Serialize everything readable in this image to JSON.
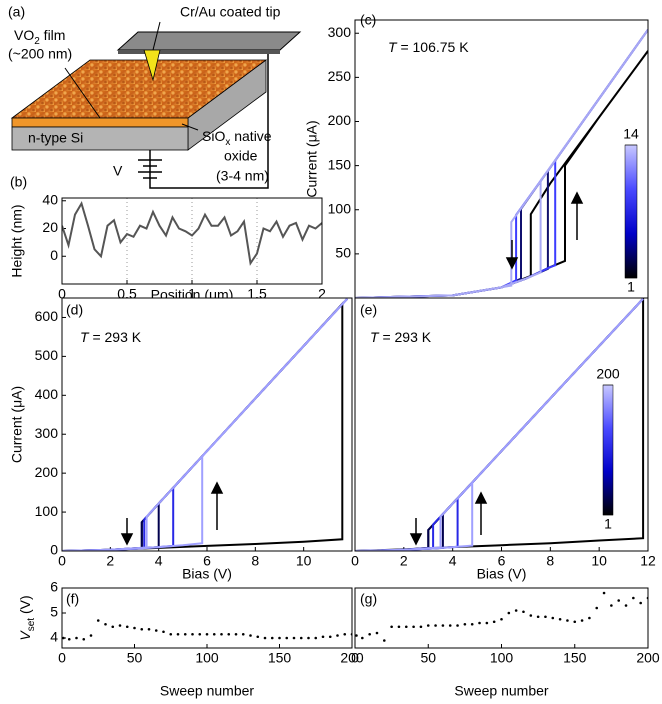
{
  "schematic": {
    "panel": "(a)",
    "tip_label": "Cr/Au coated tip",
    "film_label": [
      "VO",
      "2",
      " film"
    ],
    "film_thickness": "(~200 nm)",
    "substrate_label": "n-type Si",
    "oxide_label": [
      "SiO",
      "x",
      " native"
    ],
    "oxide_line2": "oxide",
    "oxide_thickness": "(3-4 nm)",
    "source_label": "V"
  },
  "chart_data": [
    {
      "type": "line",
      "panel": "(b)",
      "xlabel": "Position (μm)",
      "ylabel": "Height (nm)",
      "xlim": [
        0,
        2
      ],
      "ylim": [
        -20,
        42
      ],
      "xticks": [
        0,
        0.5,
        1,
        1.5,
        2
      ],
      "yticks": [
        0,
        20,
        40
      ],
      "grid": true,
      "series": [
        {
          "color": "#555555",
          "x": [
            0,
            0.05,
            0.1,
            0.15,
            0.2,
            0.25,
            0.3,
            0.35,
            0.4,
            0.45,
            0.5,
            0.55,
            0.6,
            0.65,
            0.7,
            0.75,
            0.8,
            0.85,
            0.9,
            0.95,
            1,
            1.05,
            1.1,
            1.15,
            1.2,
            1.25,
            1.3,
            1.35,
            1.4,
            1.45,
            1.5,
            1.55,
            1.6,
            1.65,
            1.7,
            1.75,
            1.8,
            1.85,
            1.9,
            1.95,
            2
          ],
          "values": [
            22,
            8,
            30,
            38,
            22,
            5,
            0,
            22,
            26,
            10,
            16,
            14,
            22,
            20,
            32,
            22,
            15,
            28,
            20,
            18,
            15,
            20,
            30,
            22,
            22,
            28,
            15,
            18,
            25,
            -5,
            2,
            20,
            18,
            25,
            14,
            22,
            24,
            12,
            22,
            20,
            24
          ]
        }
      ]
    },
    {
      "type": "line",
      "panel": "(c)",
      "ylabel": "Current (μA)",
      "annotation": [
        "T",
        " = 106.75 K"
      ],
      "xlim": [
        0,
        12
      ],
      "ylim": [
        0,
        315
      ],
      "yticks": [
        50,
        100,
        150,
        200,
        250,
        300
      ],
      "colorbar": {
        "ticks": [
          1,
          14
        ],
        "colors": [
          "#000000",
          "#0000c8",
          "#4a4aff",
          "#c8c8ff"
        ]
      },
      "series": [
        {
          "color": "#000000",
          "x": [
            0,
            4,
            6,
            7,
            8,
            8.6,
            8.6,
            10,
            12,
            10,
            8,
            7.2,
            7.2,
            6,
            4,
            0
          ],
          "values": [
            0,
            3,
            12,
            22,
            35,
            42,
            150,
            205,
            280,
            205,
            130,
            95,
            25,
            12,
            3,
            0
          ]
        },
        {
          "color": "#10106e",
          "x": [
            0,
            4,
            6,
            7,
            7.9,
            7.9,
            10,
            12,
            10,
            8,
            6.8,
            6.8,
            6,
            4,
            0
          ],
          "values": [
            0,
            3,
            12,
            22,
            33,
            144,
            226,
            304,
            226,
            148,
            101,
            22,
            12,
            3,
            0
          ]
        },
        {
          "color": "#3c3cff",
          "x": [
            0,
            4,
            6,
            7,
            8,
            8.2,
            8.2,
            10,
            12,
            10,
            8,
            6.6,
            6.6,
            6,
            4,
            0
          ],
          "values": [
            0,
            3,
            12,
            22,
            35,
            37,
            156,
            226,
            304,
            226,
            148,
            94,
            20,
            12,
            3,
            0
          ]
        },
        {
          "color": "#a8a8f5",
          "x": [
            0,
            4,
            6,
            7,
            7.6,
            7.6,
            10,
            12,
            10,
            8,
            6.4,
            6.4,
            4,
            0
          ],
          "values": [
            0,
            3,
            12,
            22,
            29,
            133,
            226,
            304,
            226,
            148,
            86,
            14,
            3,
            0
          ]
        }
      ]
    },
    {
      "type": "line",
      "panel": "(d)",
      "xlabel": "Bias (V)",
      "ylabel": "Current (μA)",
      "annotation": [
        "T",
        " = 293 K"
      ],
      "xlim": [
        0,
        12
      ],
      "ylim": [
        0,
        650
      ],
      "xticks": [
        0,
        2,
        4,
        6,
        8,
        10
      ],
      "yticks": [
        0,
        100,
        200,
        300,
        400,
        500,
        600
      ],
      "series": [
        {
          "color": "#000000",
          "x": [
            0,
            2,
            4,
            6,
            8,
            10,
            11.6,
            11.6,
            10,
            8,
            6,
            4,
            3.3,
            3.3,
            2,
            0
          ],
          "values": [
            0,
            3,
            8,
            13,
            18,
            24,
            30,
            635,
            527,
            392,
            257,
            122,
            74,
            8,
            3,
            0
          ]
        },
        {
          "color": "#00004d",
          "x": [
            0,
            2,
            3,
            4,
            4,
            6,
            8,
            10,
            11.8,
            10,
            8,
            6,
            4,
            3.3,
            3.3,
            2,
            0
          ],
          "values": [
            0,
            3,
            6,
            10,
            122,
            257,
            392,
            527,
            648,
            527,
            392,
            257,
            122,
            74,
            8,
            3,
            0
          ]
        },
        {
          "color": "#2828e6",
          "x": [
            0,
            2,
            3,
            4,
            4.6,
            4.6,
            6,
            8,
            10,
            11.8,
            10,
            8,
            6,
            4,
            3.4,
            3.4,
            2,
            0
          ],
          "values": [
            0,
            3,
            6,
            10,
            13,
            162,
            257,
            392,
            527,
            648,
            527,
            392,
            257,
            122,
            81,
            8,
            3,
            0
          ]
        },
        {
          "color": "#a0a0ff",
          "x": [
            0,
            2,
            3,
            4,
            5,
            5.8,
            5.8,
            8,
            10,
            11.8,
            10,
            8,
            6,
            4,
            3.5,
            3.5,
            2,
            0
          ],
          "values": [
            0,
            3,
            6,
            10,
            15,
            20,
            243,
            392,
            527,
            648,
            527,
            392,
            257,
            122,
            88,
            9,
            3,
            0
          ]
        }
      ]
    },
    {
      "type": "line",
      "panel": "(e)",
      "xlabel": "Bias (V)",
      "annotation": [
        "T",
        " = 293 K"
      ],
      "xlim": [
        0,
        12
      ],
      "ylim": [
        0,
        650
      ],
      "xticks": [
        0,
        2,
        4,
        6,
        8,
        10,
        12
      ],
      "colorbar": {
        "ticks": [
          1,
          200
        ],
        "colors": [
          "#000000",
          "#0000c8",
          "#4a4aff",
          "#c8c8ff"
        ]
      },
      "series": [
        {
          "color": "#000000",
          "x": [
            0,
            2,
            4,
            6,
            8,
            10,
            11.8,
            11.8,
            10,
            8,
            6,
            4,
            3,
            3,
            2,
            0
          ],
          "values": [
            0,
            4,
            10,
            15,
            20,
            27,
            33,
            648,
            527,
            392,
            257,
            122,
            54,
            8,
            3,
            0
          ]
        },
        {
          "color": "#00004d",
          "x": [
            0,
            2,
            3,
            3.6,
            3.6,
            6,
            8,
            10,
            11.8,
            10,
            8,
            6,
            4,
            3,
            3,
            2,
            0
          ],
          "values": [
            0,
            3,
            6,
            8,
            95,
            257,
            392,
            527,
            648,
            527,
            392,
            257,
            122,
            54,
            8,
            3,
            0
          ]
        },
        {
          "color": "#2828e6",
          "x": [
            0,
            2,
            3,
            4,
            4.2,
            4.2,
            6,
            8,
            10,
            11.8,
            10,
            8,
            6,
            4,
            3.2,
            3.2,
            2,
            0
          ],
          "values": [
            0,
            3,
            6,
            10,
            11,
            135,
            257,
            392,
            527,
            648,
            527,
            392,
            257,
            122,
            68,
            8,
            3,
            0
          ]
        },
        {
          "color": "#a0a0ff",
          "x": [
            0,
            2,
            3,
            4,
            4.8,
            4.8,
            6,
            8,
            10,
            11.8,
            10,
            8,
            6,
            4,
            3.5,
            3.5,
            2,
            0
          ],
          "values": [
            0,
            3,
            6,
            10,
            14,
            176,
            257,
            392,
            527,
            648,
            527,
            392,
            257,
            122,
            88,
            9,
            3,
            0
          ]
        }
      ]
    },
    {
      "type": "scatter",
      "panel": "(f)",
      "xlabel": "Sweep number",
      "ylabel": [
        "V",
        "set",
        " (V)"
      ],
      "xlim": [
        0,
        200
      ],
      "ylim": [
        3.6,
        6
      ],
      "xticks": [
        0,
        50,
        100,
        150,
        200
      ],
      "yticks": [
        4,
        5,
        6
      ],
      "series": [
        {
          "color": "#000000",
          "x": [
            1,
            5,
            10,
            15,
            20,
            25,
            30,
            35,
            40,
            45,
            50,
            55,
            60,
            65,
            70,
            75,
            80,
            85,
            90,
            95,
            100,
            105,
            110,
            115,
            120,
            125,
            130,
            135,
            140,
            145,
            150,
            155,
            160,
            165,
            170,
            175,
            180,
            185,
            190,
            195,
            200
          ],
          "values": [
            4.0,
            3.95,
            4.0,
            3.95,
            4.1,
            4.7,
            4.55,
            4.45,
            4.5,
            4.45,
            4.4,
            4.35,
            4.35,
            4.3,
            4.25,
            4.15,
            4.15,
            4.15,
            4.15,
            4.15,
            4.15,
            4.15,
            4.15,
            4.15,
            4.15,
            4.15,
            4.1,
            4.05,
            4.0,
            4.0,
            4.0,
            4.0,
            4.0,
            4.0,
            4.0,
            4.0,
            4.05,
            4.05,
            4.1,
            4.15,
            4.15
          ]
        }
      ]
    },
    {
      "type": "scatter",
      "panel": "(g)",
      "xlabel": "Sweep number",
      "xlim": [
        0,
        200
      ],
      "ylim": [
        3.6,
        6
      ],
      "xticks": [
        0,
        50,
        100,
        150,
        200
      ],
      "series": [
        {
          "color": "#000000",
          "x": [
            1,
            5,
            10,
            15,
            20,
            25,
            30,
            35,
            40,
            45,
            50,
            55,
            60,
            65,
            70,
            75,
            80,
            85,
            90,
            95,
            100,
            105,
            110,
            115,
            120,
            125,
            130,
            135,
            140,
            145,
            150,
            155,
            160,
            165,
            170,
            175,
            180,
            185,
            190,
            195,
            200
          ],
          "values": [
            4.1,
            4.0,
            4.15,
            4.2,
            3.9,
            4.45,
            4.45,
            4.45,
            4.45,
            4.45,
            4.5,
            4.5,
            4.5,
            4.5,
            4.5,
            4.55,
            4.55,
            4.6,
            4.6,
            4.65,
            4.75,
            5.0,
            5.1,
            5.05,
            4.9,
            4.85,
            4.85,
            4.8,
            4.75,
            4.7,
            4.65,
            4.7,
            4.8,
            5.2,
            5.8,
            5.3,
            5.5,
            5.3,
            5.6,
            5.4,
            5.6
          ]
        }
      ]
    }
  ]
}
